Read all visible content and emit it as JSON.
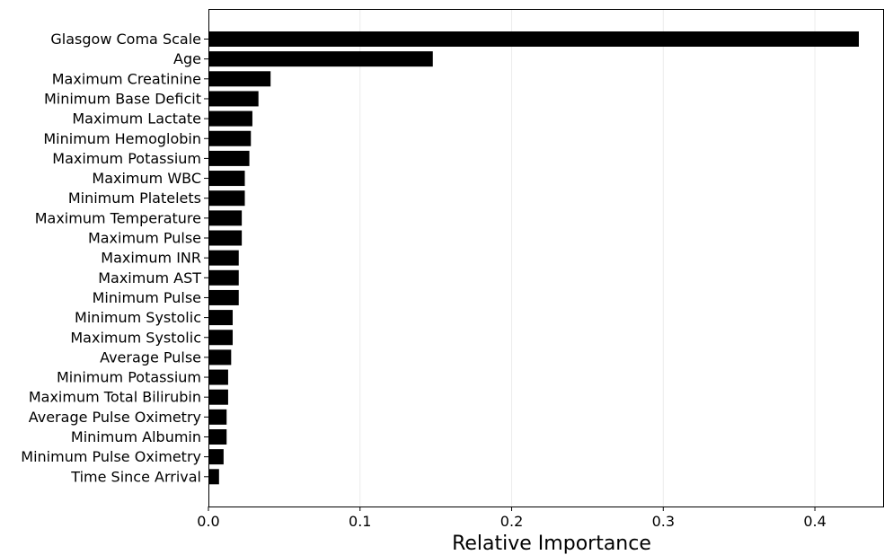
{
  "chart_data": {
    "type": "bar",
    "orientation": "horizontal",
    "title": "",
    "xlabel": "Relative Importance",
    "ylabel": "",
    "xlim": [
      0,
      0.445
    ],
    "xticks": [
      0.0,
      0.1,
      0.2,
      0.3,
      0.4
    ],
    "xtick_labels": [
      "0.0",
      "0.1",
      "0.2",
      "0.3",
      "0.4"
    ],
    "grid": "vertical",
    "bar_color": "#000000",
    "categories": [
      "Glasgow Coma Scale",
      "Age",
      "Maximum Creatinine",
      "Minimum Base Deficit",
      "Maximum Lactate",
      "Minimum Hemoglobin",
      "Maximum Potassium",
      "Maximum WBC",
      "Minimum Platelets",
      "Maximum Temperature",
      "Maximum Pulse",
      "Maximum INR",
      "Maximum AST",
      "Minimum Pulse",
      "Minimum Systolic",
      "Maximum Systolic",
      "Average Pulse",
      "Minimum Potassium",
      "Maximum Total Bilirubin",
      "Average Pulse Oximetry",
      "Minimum Albumin",
      "Minimum Pulse Oximetry",
      "Time Since Arrival"
    ],
    "values": [
      0.429,
      0.148,
      0.041,
      0.033,
      0.029,
      0.028,
      0.027,
      0.024,
      0.024,
      0.022,
      0.022,
      0.02,
      0.02,
      0.02,
      0.016,
      0.016,
      0.015,
      0.013,
      0.013,
      0.012,
      0.012,
      0.01,
      0.007
    ]
  }
}
